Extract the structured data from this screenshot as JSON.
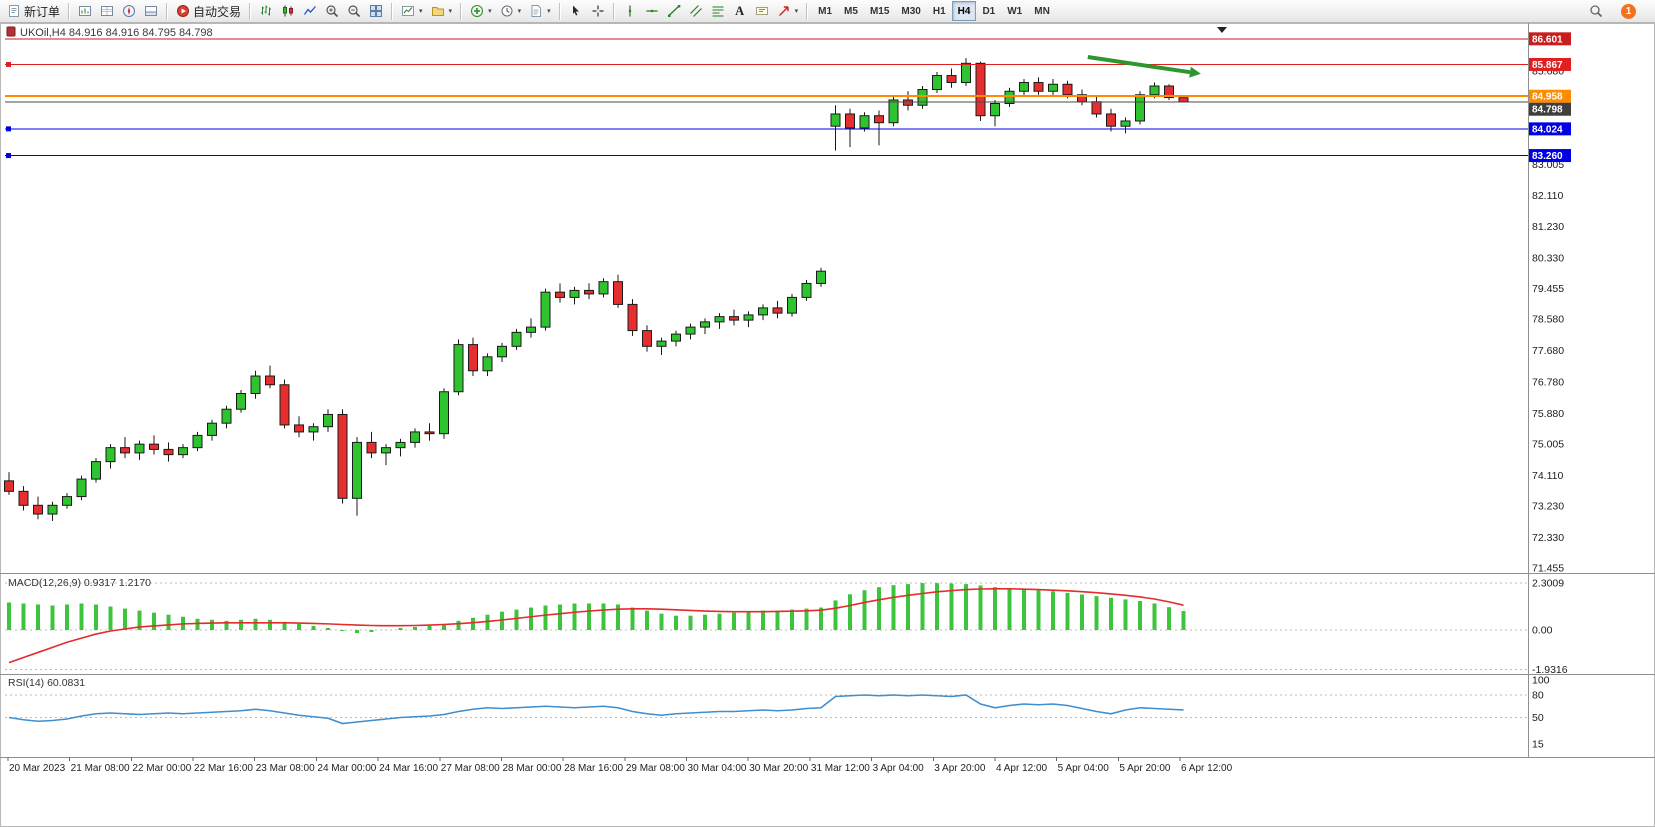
{
  "toolbar": {
    "new_order_label": "新订单",
    "autotrading_label": "自动交易",
    "text_tool_label": "A",
    "timeframes": [
      "M1",
      "M5",
      "M15",
      "M30",
      "H1",
      "H4",
      "D1",
      "W1",
      "MN"
    ],
    "active_timeframe": "H4",
    "notification_count": "1",
    "icons": {
      "new_order": "document-sheet",
      "market_watch": "chart-window",
      "data_window": "data-table-window",
      "navigator": "compass",
      "terminal": "split-window",
      "autotrading": "red-play-circle",
      "bar_chart": "ohlc-bars",
      "candle_chart": "candlesticks",
      "line_chart": "polyline",
      "zoom_in": "magnifier-plus",
      "zoom_out": "magnifier-minus",
      "tile_windows": "grid-2x2",
      "new_chart": "chart-plus",
      "profiles": "folder",
      "indicators": "green-plus-circle",
      "periods": "clock",
      "templates": "document-lines",
      "cursor": "pointer-arrow",
      "crosshair": "crosshair",
      "vertical_line": "vertical-line",
      "horizontal_line": "horizontal-line",
      "trendline": "diagonal-line",
      "channel": "parallel-lines",
      "fibonacci": "stacked-lines",
      "text": "letter-A",
      "text_label": "label-box",
      "arrows_tool": "red-arrow",
      "search": "magnifier",
      "notification": "orange-count-badge"
    }
  },
  "chart_data": {
    "type": "candlestick",
    "symbol_period": "UKOil,H4",
    "ohlc_line": "84.916 84.916 84.795 84.798",
    "style": {
      "up_color": "#2fc42f",
      "down_color": "#e62e2e",
      "wick_color": "#1a1a1a"
    },
    "price_axis_labels": [
      85.68,
      83.005,
      82.11,
      81.23,
      80.33,
      79.455,
      78.58,
      77.68,
      76.78,
      75.88,
      75.005,
      74.11,
      73.23,
      72.33,
      71.455
    ],
    "levels": [
      {
        "price": 86.601,
        "color": "#c81e1e",
        "width": 1,
        "box": "#c81e1e"
      },
      {
        "price": 85.867,
        "color": "#e02020",
        "width": 1,
        "box": "#e02020",
        "handles": true
      },
      {
        "price": 84.958,
        "color": "#ff8c00",
        "width": 2,
        "box": "#ff8c00"
      },
      {
        "price": 84.798,
        "color": "#4a4a4a",
        "width": 1,
        "box": "#3f3f3f",
        "bid": true
      },
      {
        "price": 84.024,
        "color": "#0000e6",
        "width": 1,
        "box": "#0000e6",
        "handles": true
      },
      {
        "price": 83.26,
        "color": "#0000e6",
        "width": 1,
        "box": "#0000e6",
        "handles": true
      }
    ],
    "time_labels": [
      "20 Mar 2023",
      "21 Mar 08:00",
      "22 Mar 00:00",
      "22 Mar 16:00",
      "23 Mar 08:00",
      "24 Mar 00:00",
      "24 Mar 16:00",
      "27 Mar 08:00",
      "28 Mar 00:00",
      "28 Mar 16:00",
      "29 Mar 08:00",
      "30 Mar 04:00",
      "30 Mar 20:00",
      "31 Mar 12:00",
      "3 Apr 04:00",
      "3 Apr 20:00",
      "4 Apr 12:00",
      "5 Apr 04:00",
      "5 Apr 20:00",
      "6 Apr 12:00"
    ],
    "candles": [
      [
        73.95,
        74.2,
        73.55,
        73.65
      ],
      [
        73.65,
        73.8,
        73.1,
        73.25
      ],
      [
        73.25,
        73.5,
        72.85,
        73.0
      ],
      [
        73.0,
        73.35,
        72.8,
        73.25
      ],
      [
        73.25,
        73.6,
        73.15,
        73.5
      ],
      [
        73.5,
        74.1,
        73.4,
        74.0
      ],
      [
        74.0,
        74.6,
        73.9,
        74.5
      ],
      [
        74.5,
        75.0,
        74.3,
        74.9
      ],
      [
        74.9,
        75.2,
        74.6,
        74.75
      ],
      [
        74.75,
        75.1,
        74.55,
        75.0
      ],
      [
        75.0,
        75.25,
        74.7,
        74.85
      ],
      [
        74.85,
        75.05,
        74.5,
        74.7
      ],
      [
        74.7,
        75.0,
        74.6,
        74.9
      ],
      [
        74.9,
        75.35,
        74.8,
        75.25
      ],
      [
        75.25,
        75.7,
        75.1,
        75.6
      ],
      [
        75.6,
        76.1,
        75.45,
        76.0
      ],
      [
        76.0,
        76.55,
        75.9,
        76.45
      ],
      [
        76.45,
        77.1,
        76.3,
        76.95
      ],
      [
        76.95,
        77.25,
        76.6,
        76.7
      ],
      [
        76.7,
        76.85,
        75.45,
        75.55
      ],
      [
        75.55,
        75.8,
        75.2,
        75.35
      ],
      [
        75.35,
        75.6,
        75.1,
        75.5
      ],
      [
        75.5,
        76.0,
        75.35,
        75.85
      ],
      [
        75.85,
        76.0,
        73.3,
        73.45
      ],
      [
        73.45,
        75.2,
        72.95,
        75.05
      ],
      [
        75.05,
        75.35,
        74.6,
        74.75
      ],
      [
        74.75,
        75.0,
        74.4,
        74.9
      ],
      [
        74.9,
        75.15,
        74.65,
        75.05
      ],
      [
        75.05,
        75.45,
        74.9,
        75.35
      ],
      [
        75.35,
        75.6,
        75.1,
        75.3
      ],
      [
        75.3,
        76.6,
        75.15,
        76.5
      ],
      [
        76.5,
        78.0,
        76.4,
        77.85
      ],
      [
        77.85,
        78.05,
        76.95,
        77.1
      ],
      [
        77.1,
        77.6,
        76.95,
        77.5
      ],
      [
        77.5,
        77.9,
        77.35,
        77.8
      ],
      [
        77.8,
        78.3,
        77.7,
        78.2
      ],
      [
        78.2,
        78.6,
        78.05,
        78.35
      ],
      [
        78.35,
        79.45,
        78.25,
        79.35
      ],
      [
        79.35,
        79.6,
        79.05,
        79.2
      ],
      [
        79.2,
        79.5,
        79.0,
        79.4
      ],
      [
        79.4,
        79.6,
        79.15,
        79.3
      ],
      [
        79.3,
        79.75,
        79.2,
        79.65
      ],
      [
        79.65,
        79.85,
        78.9,
        79.0
      ],
      [
        79.0,
        79.15,
        78.1,
        78.25
      ],
      [
        78.25,
        78.4,
        77.65,
        77.8
      ],
      [
        77.8,
        78.05,
        77.55,
        77.95
      ],
      [
        77.95,
        78.25,
        77.8,
        78.15
      ],
      [
        78.15,
        78.45,
        78.0,
        78.35
      ],
      [
        78.35,
        78.6,
        78.15,
        78.5
      ],
      [
        78.5,
        78.75,
        78.3,
        78.65
      ],
      [
        78.65,
        78.85,
        78.4,
        78.55
      ],
      [
        78.55,
        78.8,
        78.35,
        78.7
      ],
      [
        78.7,
        79.0,
        78.55,
        78.9
      ],
      [
        78.9,
        79.1,
        78.6,
        78.75
      ],
      [
        78.75,
        79.3,
        78.65,
        79.2
      ],
      [
        79.2,
        79.7,
        79.1,
        79.6
      ],
      [
        79.6,
        80.05,
        79.5,
        79.95
      ],
      [
        84.1,
        84.7,
        83.4,
        84.45
      ],
      [
        84.45,
        84.6,
        83.5,
        84.05
      ],
      [
        84.05,
        84.5,
        83.95,
        84.4
      ],
      [
        84.4,
        84.55,
        83.55,
        84.2
      ],
      [
        84.2,
        84.95,
        84.1,
        84.85
      ],
      [
        84.85,
        85.1,
        84.55,
        84.7
      ],
      [
        84.7,
        85.25,
        84.6,
        85.15
      ],
      [
        85.15,
        85.65,
        85.05,
        85.55
      ],
      [
        85.55,
        85.75,
        85.2,
        85.35
      ],
      [
        85.35,
        86.05,
        85.25,
        85.9
      ],
      [
        85.9,
        85.95,
        84.25,
        84.4
      ],
      [
        84.4,
        84.85,
        84.1,
        84.75
      ],
      [
        84.75,
        85.2,
        84.65,
        85.1
      ],
      [
        85.1,
        85.45,
        84.95,
        85.35
      ],
      [
        85.35,
        85.5,
        85.0,
        85.1
      ],
      [
        85.1,
        85.45,
        84.95,
        85.3
      ],
      [
        85.3,
        85.4,
        84.9,
        85.0
      ],
      [
        85.0,
        85.15,
        84.7,
        84.8
      ],
      [
        84.8,
        84.95,
        84.35,
        84.45
      ],
      [
        84.45,
        84.6,
        83.95,
        84.1
      ],
      [
        84.1,
        84.35,
        83.9,
        84.25
      ],
      [
        84.25,
        85.1,
        84.15,
        85.0
      ],
      [
        85.0,
        85.35,
        84.9,
        85.25
      ],
      [
        85.25,
        85.3,
        84.85,
        84.92
      ],
      [
        84.916,
        84.916,
        84.795,
        84.798
      ]
    ],
    "indicators": {
      "macd": {
        "label": "MACD(12,26,9)",
        "current_values": "0.9317 1.2170",
        "axis_labels": [
          "2.3009",
          "0.00",
          "-1.9316"
        ],
        "axis_values": [
          2.3009,
          0,
          -1.9316
        ],
        "histogram_color": "#3cc43c",
        "signal_color": "#e52b2b",
        "histogram": [
          1.35,
          1.3,
          1.25,
          1.2,
          1.25,
          1.3,
          1.25,
          1.15,
          1.05,
          0.95,
          0.85,
          0.75,
          0.65,
          0.55,
          0.5,
          0.45,
          0.5,
          0.55,
          0.5,
          0.4,
          0.3,
          0.2,
          0.1,
          -0.05,
          -0.15,
          -0.1,
          0.0,
          0.1,
          0.15,
          0.2,
          0.3,
          0.45,
          0.6,
          0.75,
          0.9,
          1.0,
          1.1,
          1.2,
          1.25,
          1.3,
          1.3,
          1.3,
          1.25,
          1.1,
          0.95,
          0.8,
          0.7,
          0.7,
          0.75,
          0.8,
          0.85,
          0.9,
          0.95,
          0.95,
          1.0,
          1.05,
          1.1,
          1.45,
          1.75,
          1.95,
          2.1,
          2.2,
          2.25,
          2.3,
          2.3009,
          2.28,
          2.25,
          2.18,
          2.1,
          2.05,
          2.0,
          1.95,
          1.9,
          1.82,
          1.74,
          1.66,
          1.58,
          1.5,
          1.42,
          1.3,
          1.12,
          0.9317
        ],
        "signal": [
          -1.6,
          -1.35,
          -1.1,
          -0.85,
          -0.6,
          -0.4,
          -0.2,
          -0.05,
          0.05,
          0.15,
          0.2,
          0.25,
          0.3,
          0.32,
          0.34,
          0.35,
          0.35,
          0.35,
          0.35,
          0.35,
          0.34,
          0.32,
          0.3,
          0.27,
          0.24,
          0.22,
          0.21,
          0.21,
          0.22,
          0.24,
          0.27,
          0.31,
          0.36,
          0.42,
          0.49,
          0.57,
          0.65,
          0.73,
          0.8,
          0.87,
          0.93,
          0.98,
          1.02,
          1.04,
          1.04,
          1.02,
          0.99,
          0.96,
          0.93,
          0.91,
          0.9,
          0.9,
          0.9,
          0.91,
          0.92,
          0.94,
          0.97,
          1.07,
          1.2,
          1.35,
          1.48,
          1.6,
          1.7,
          1.79,
          1.87,
          1.93,
          1.98,
          2.01,
          2.02,
          2.02,
          2.0,
          1.98,
          1.95,
          1.92,
          1.88,
          1.83,
          1.77,
          1.7,
          1.62,
          1.52,
          1.38,
          1.217
        ]
      },
      "rsi": {
        "label": "RSI(14)",
        "current_value": "60.0831",
        "axis_labels": [
          "100",
          "80",
          "50",
          "15"
        ],
        "axis_values": [
          100,
          80,
          50,
          15
        ],
        "level_lines": [
          80,
          50
        ],
        "line_color": "#3e8ed0",
        "values": [
          50,
          47,
          45,
          46,
          48,
          52,
          55,
          56,
          55,
          54,
          55,
          56,
          55,
          56,
          57,
          58,
          59,
          61,
          59,
          56,
          53,
          51,
          49,
          42,
          44,
          46,
          48,
          50,
          51,
          52,
          54,
          58,
          61,
          63,
          62,
          63,
          64,
          65,
          64,
          63,
          64,
          65,
          63,
          58,
          55,
          53,
          55,
          56,
          57,
          58,
          58,
          59,
          60,
          59,
          60,
          62,
          63,
          78,
          79,
          80,
          79,
          80,
          79,
          80,
          79,
          78,
          80,
          68,
          63,
          66,
          68,
          67,
          68,
          66,
          62,
          58,
          55,
          60,
          63,
          62,
          61,
          60.0831
        ]
      }
    },
    "annotation_arrow": {
      "from_candle": 75.4,
      "from_price": 86.08,
      "to_candle": 83.2,
      "to_price": 85.6,
      "color": "#2e962e"
    }
  }
}
